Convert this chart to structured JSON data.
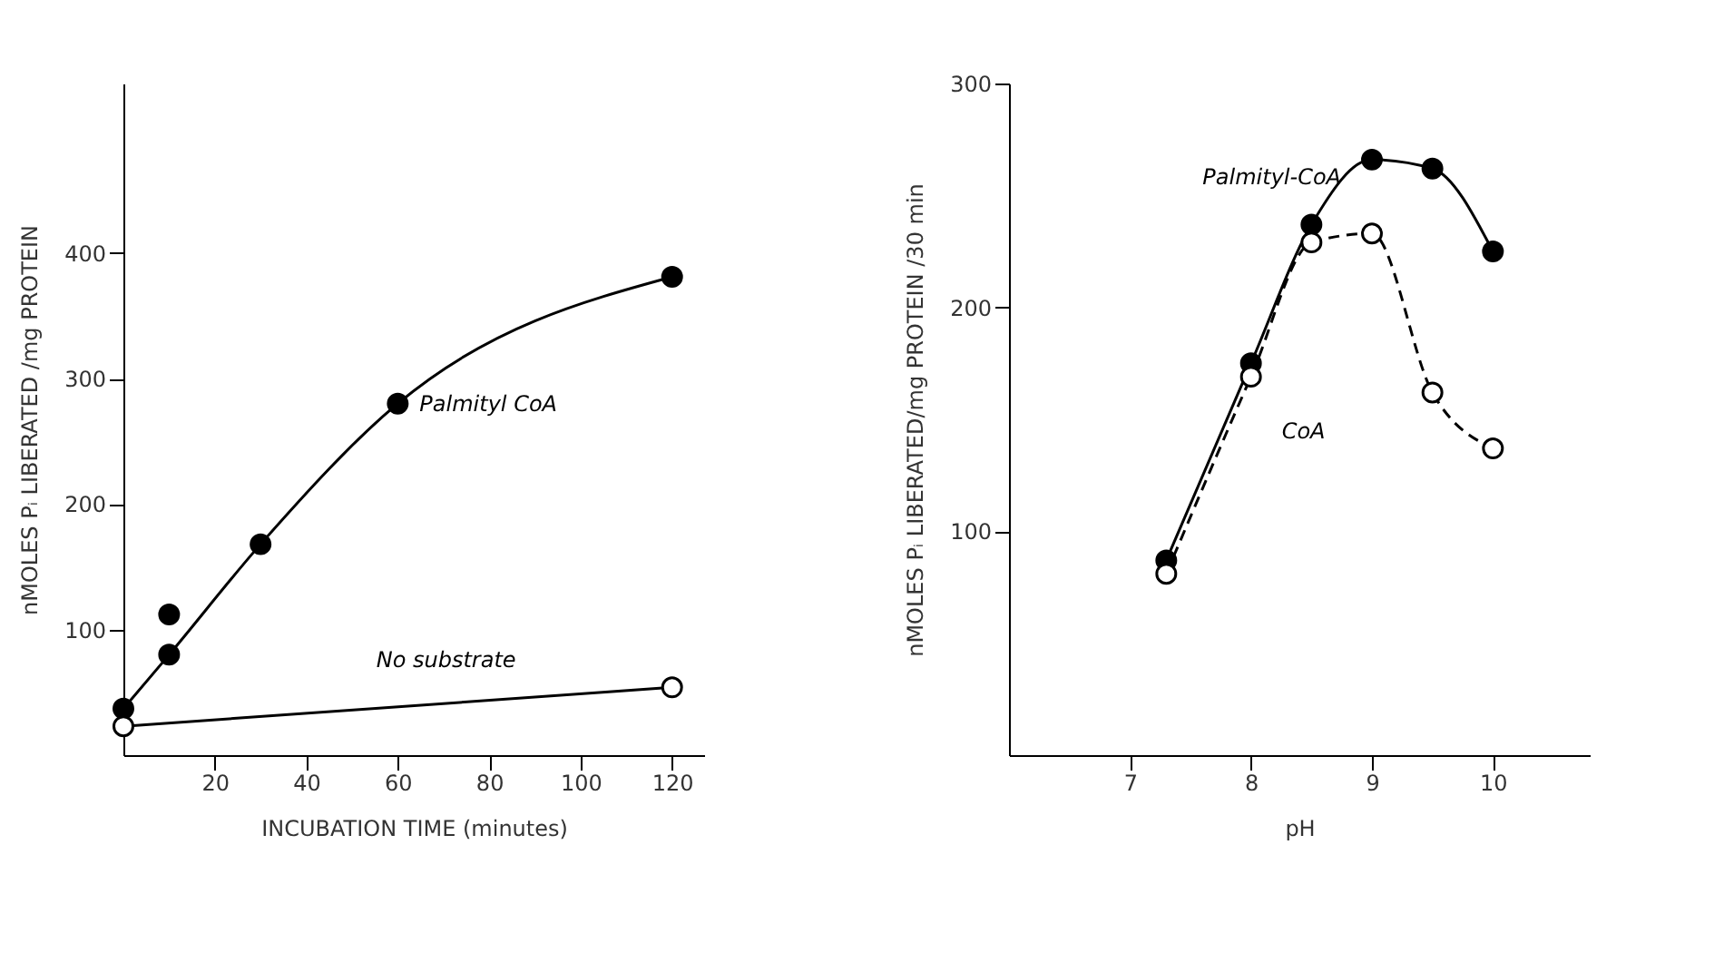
{
  "chart_data": [
    {
      "type": "line",
      "xlabel": "INCUBATION TIME (minutes)",
      "ylabel": "nMOLES Pᵢ LIBERATED /mg PROTEIN",
      "xlim": [
        0,
        127
      ],
      "ylim": [
        0,
        535
      ],
      "xticks": [
        20,
        40,
        60,
        80,
        100,
        120
      ],
      "yticks": [
        100,
        200,
        300,
        400
      ],
      "marker": "circle",
      "series": [
        {
          "name": "Palmityl CoA",
          "color": "#000000",
          "line_style": "solid",
          "x": [
            0,
            10,
            30,
            60,
            120
          ],
          "values": [
            37,
            80,
            168,
            280,
            381
          ]
        },
        {
          "color": "#000000",
          "x": [
            10
          ],
          "values": [
            112
          ]
        },
        {
          "name": "No substrate",
          "color": "#000000",
          "line_style": "solid",
          "colors": [
            "#ffffff",
            "#ffffff"
          ],
          "x": [
            0,
            120
          ],
          "values": [
            23,
            54
          ]
        }
      ]
    },
    {
      "type": "line",
      "xlabel": "pH",
      "ylabel": "nMOLES Pᵢ LIBERATED/mg PROTEIN /30 min",
      "xlim": [
        6,
        10.8
      ],
      "ylim": [
        0,
        300
      ],
      "xticks": [
        7,
        8,
        9,
        10
      ],
      "yticks": [
        100,
        200,
        300
      ],
      "marker": "circle",
      "series": [
        {
          "name": "Palmityl-CoA",
          "color": "#000000",
          "line_style": "solid",
          "x": [
            7.3,
            8,
            8.5,
            9,
            9.5,
            10
          ],
          "values": [
            87,
            175,
            237,
            266,
            262,
            225
          ]
        },
        {
          "name": "CoA",
          "color": "#000000",
          "colors": [
            "#ffffff",
            "#ffffff",
            "#ffffff",
            "#ffffff",
            "#ffffff",
            "#ffffff"
          ],
          "line_style": "dashed",
          "x": [
            7.3,
            8,
            8.5,
            9,
            9.5,
            10
          ],
          "values": [
            81,
            169,
            229,
            233,
            162,
            137
          ]
        }
      ]
    }
  ]
}
